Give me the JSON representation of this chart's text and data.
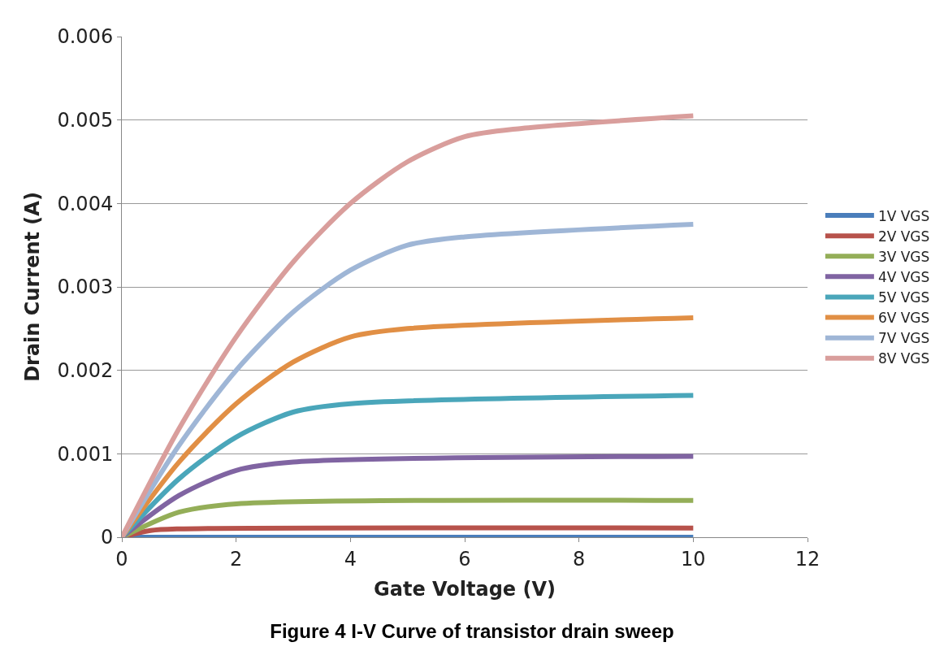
{
  "chart_data": {
    "type": "line",
    "title": "Figure 4 I-V Curve of transistor drain sweep",
    "xlabel": "Gate Voltage (V)",
    "ylabel": "Drain Current (A)",
    "xlim": [
      0,
      12
    ],
    "xticks": [
      0,
      2,
      4,
      6,
      8,
      10,
      12
    ],
    "ylim": [
      0,
      0.006
    ],
    "yticks": [
      0,
      0.001,
      0.002,
      0.003,
      0.004,
      0.005,
      0.006
    ],
    "grid": "y",
    "legend": "right",
    "marker": "none",
    "line_style": "solid",
    "series": [
      {
        "name": "1V VGS",
        "color": "#4a7ebb",
        "x": [
          0,
          1,
          10
        ],
        "values": [
          0,
          0,
          0
        ]
      },
      {
        "name": "2V VGS",
        "color": "#b7524b",
        "x": [
          0,
          0.5,
          1,
          10
        ],
        "values": [
          0,
          8e-05,
          0.0001,
          0.00011
        ]
      },
      {
        "name": "3V VGS",
        "color": "#94ae58",
        "x": [
          0,
          1,
          2,
          10
        ],
        "values": [
          0,
          0.0003,
          0.0004,
          0.00044
        ]
      },
      {
        "name": "4V VGS",
        "color": "#8064a2",
        "x": [
          0,
          1,
          2,
          3,
          10
        ],
        "values": [
          0,
          0.0005,
          0.0008,
          0.0009,
          0.00097
        ]
      },
      {
        "name": "5V VGS",
        "color": "#4aa6ba",
        "x": [
          0,
          1,
          2,
          3,
          4,
          10
        ],
        "values": [
          0,
          0.0007,
          0.0012,
          0.0015,
          0.0016,
          0.0017
        ]
      },
      {
        "name": "6V VGS",
        "color": "#e18f45",
        "x": [
          0,
          1,
          2,
          3,
          4,
          5,
          10
        ],
        "values": [
          0,
          0.0009,
          0.0016,
          0.0021,
          0.0024,
          0.0025,
          0.00263
        ]
      },
      {
        "name": "7V VGS",
        "color": "#9fb6d6",
        "x": [
          0,
          1,
          2,
          3,
          4,
          5,
          6,
          10
        ],
        "values": [
          0,
          0.0011,
          0.002,
          0.0027,
          0.0032,
          0.0035,
          0.0036,
          0.00375
        ]
      },
      {
        "name": "8V VGS",
        "color": "#d99e9c",
        "x": [
          0,
          1,
          2,
          3,
          4,
          5,
          6,
          7,
          10
        ],
        "values": [
          0,
          0.0013,
          0.0024,
          0.0033,
          0.004,
          0.0045,
          0.0048,
          0.0049,
          0.00505
        ]
      }
    ]
  }
}
